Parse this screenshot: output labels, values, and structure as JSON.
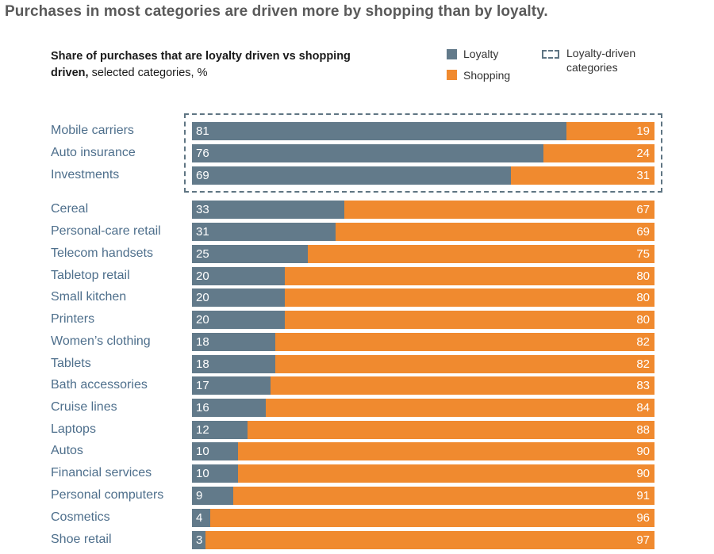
{
  "headline": "Purchases in most categories are driven more by shopping than by loyalty.",
  "subtitle": {
    "bold": "Share of purchases that are loyalty driven vs shopping driven,",
    "normal": " selected categories, %"
  },
  "legend": {
    "loyalty": "Loyalty",
    "shopping": "Shopping",
    "loyalty_driven_line1": "Loyalty-driven",
    "loyalty_driven_line2": "categories"
  },
  "colors": {
    "loyalty": "#627a8a",
    "shopping": "#f08a2f",
    "dashed": "#5f7583",
    "label": "#4e6f8c"
  },
  "chart_data": {
    "type": "bar",
    "orientation": "horizontal",
    "stacked": true,
    "unit": "%",
    "categories": [
      "Mobile carriers",
      "Auto insurance",
      "Investments",
      "Cereal",
      "Personal-care retail",
      "Telecom handsets",
      "Tabletop retail",
      "Small kitchen",
      "Printers",
      "Women’s clothing",
      "Tablets",
      "Bath accessories",
      "Cruise lines",
      "Laptops",
      "Autos",
      "Financial services",
      "Personal computers",
      "Cosmetics",
      "Shoe retail"
    ],
    "series": [
      {
        "name": "Loyalty",
        "values": [
          81,
          76,
          69,
          33,
          31,
          25,
          20,
          20,
          20,
          18,
          18,
          17,
          16,
          12,
          10,
          10,
          9,
          4,
          3
        ]
      },
      {
        "name": "Shopping",
        "values": [
          19,
          24,
          31,
          67,
          69,
          75,
          80,
          80,
          80,
          82,
          82,
          83,
          84,
          88,
          90,
          90,
          91,
          96,
          97
        ]
      }
    ],
    "highlighted_group": [
      "Mobile carriers",
      "Auto insurance",
      "Investments"
    ],
    "xlim": [
      0,
      100
    ],
    "legend_position": "top-right"
  }
}
